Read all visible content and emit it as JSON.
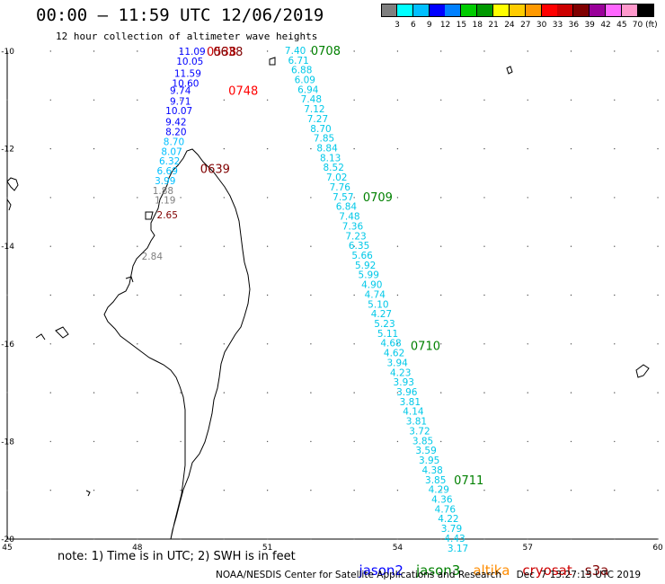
{
  "title": "00:00 – 11:59 UTC 12/06/2019",
  "subtitle": "12 hour collection of altimeter wave heights",
  "colorbar": {
    "colors": [
      "#7f7f7f",
      "#00ffff",
      "#00bfff",
      "#0000ff",
      "#0080ff",
      "#00cc00",
      "#009900",
      "#ffff00",
      "#ffcc00",
      "#ff9900",
      "#ff0000",
      "#cc0000",
      "#800000",
      "#990099",
      "#ff66ff",
      "#ff99cc",
      "#000000"
    ],
    "ticks": [
      "3",
      "6",
      "9",
      "12",
      "15",
      "18",
      "21",
      "24",
      "27",
      "30",
      "33",
      "36",
      "39",
      "42",
      "45",
      "70 (ft)"
    ]
  },
  "axes": {
    "lat_labels": [
      "-10",
      "-12",
      "-14",
      "-16",
      "-18",
      "-20"
    ],
    "lon_labels": [
      "45",
      "48",
      "51",
      "54",
      "57",
      "60"
    ]
  },
  "satellite_colors": {
    "jason2": "#0000ff",
    "jason3": "#008000",
    "altika": "#ff8c00",
    "cryosat": "#cc0000",
    "s3a": "#800000"
  },
  "track_east": {
    "time_labels": [
      {
        "text": "0708",
        "lat": -9.98,
        "lon": 52.0
      },
      {
        "text": "0709",
        "lat": -12.98,
        "lon": 53.2
      },
      {
        "text": "0710",
        "lat": -16.03,
        "lon": 54.3
      },
      {
        "text": "0711",
        "lat": -18.78,
        "lon": 55.3
      }
    ],
    "points": [
      {
        "v": "7.40",
        "lat": -9.98
      },
      {
        "v": "6.71",
        "lat": -10.18
      },
      {
        "v": "6.88",
        "lat": -10.38
      },
      {
        "v": "6.09",
        "lat": -10.58
      },
      {
        "v": "6.94",
        "lat": -10.78
      },
      {
        "v": "7.48",
        "lat": -10.98
      },
      {
        "v": "7.12",
        "lat": -11.18
      },
      {
        "v": "7.27",
        "lat": -11.38
      },
      {
        "v": "8.70",
        "lat": -11.58
      },
      {
        "v": "7.85",
        "lat": -11.78
      },
      {
        "v": "8.84",
        "lat": -11.98
      },
      {
        "v": "8.13",
        "lat": -12.18
      },
      {
        "v": "8.52",
        "lat": -12.38
      },
      {
        "v": "7.02",
        "lat": -12.58
      },
      {
        "v": "7.76",
        "lat": -12.78
      },
      {
        "v": "7.57",
        "lat": -12.98
      },
      {
        "v": "6.84",
        "lat": -13.18
      },
      {
        "v": "7.48",
        "lat": -13.38
      },
      {
        "v": "7.36",
        "lat": -13.58
      },
      {
        "v": "7.23",
        "lat": -13.78
      },
      {
        "v": "6.35",
        "lat": -13.98
      },
      {
        "v": "5.66",
        "lat": -14.18
      },
      {
        "v": "5.92",
        "lat": -14.38
      },
      {
        "v": "5.99",
        "lat": -14.58
      },
      {
        "v": "4.90",
        "lat": -14.78
      },
      {
        "v": "4.74",
        "lat": -14.98
      },
      {
        "v": "5.10",
        "lat": -15.18
      },
      {
        "v": "4.27",
        "lat": -15.38
      },
      {
        "v": "5.23",
        "lat": -15.58
      },
      {
        "v": "5.11",
        "lat": -15.78
      },
      {
        "v": "4.68",
        "lat": -15.98
      },
      {
        "v": "4.62",
        "lat": -16.18
      },
      {
        "v": "3.94",
        "lat": -16.38
      },
      {
        "v": "4.23",
        "lat": -16.58
      },
      {
        "v": "3.93",
        "lat": -16.78
      },
      {
        "v": "3.96",
        "lat": -16.98
      },
      {
        "v": "3.81",
        "lat": -17.18
      },
      {
        "v": "4.14",
        "lat": -17.38
      },
      {
        "v": "3.81",
        "lat": -17.58
      },
      {
        "v": "3.72",
        "lat": -17.78
      },
      {
        "v": "3.85",
        "lat": -17.98
      },
      {
        "v": "3.59",
        "lat": -18.18
      },
      {
        "v": "3.95",
        "lat": -18.38
      },
      {
        "v": "4.38",
        "lat": -18.58
      },
      {
        "v": "3.85",
        "lat": -18.78
      },
      {
        "v": "4.29",
        "lat": -18.98
      },
      {
        "v": "4.36",
        "lat": -19.18
      },
      {
        "v": "4.76",
        "lat": -19.38
      },
      {
        "v": "4.22",
        "lat": -19.58
      },
      {
        "v": "3.79",
        "lat": -19.78
      },
      {
        "v": "4.43",
        "lat": -19.98
      },
      {
        "v": "3.17",
        "lat": -20.18
      }
    ]
  },
  "track_west": {
    "time_labels": [
      {
        "text": "0538",
        "color": "#cc0000",
        "lat": -10.0,
        "lon": 49.6
      },
      {
        "text": "0638",
        "color": "#800000",
        "lat": -10.0,
        "lon": 49.75
      },
      {
        "text": "0748",
        "color": "#ff0000",
        "lat": -10.8,
        "lon": 50.1
      },
      {
        "text": "0639",
        "color": "#800000",
        "lat": -12.4,
        "lon": 49.45
      }
    ],
    "points": [
      {
        "v": "11.09",
        "color": "#0000ff",
        "lat": -10.0,
        "lon": 48.95
      },
      {
        "v": "10.05",
        "color": "#0000ff",
        "lat": -10.2,
        "lon": 48.9
      },
      {
        "v": "11.59",
        "color": "#0000ff",
        "lat": -10.45,
        "lon": 48.85
      },
      {
        "v": "10.60",
        "color": "#0000ff",
        "lat": -10.65,
        "lon": 48.8
      },
      {
        "v": "9.74",
        "color": "#0000ff",
        "lat": -10.8,
        "lon": 48.75
      },
      {
        "v": "9.71",
        "color": "#0000ff",
        "lat": -11.02,
        "lon": 48.75
      },
      {
        "v": "10.07",
        "color": "#0000ff",
        "lat": -11.22,
        "lon": 48.65
      },
      {
        "v": "9.42",
        "color": "#0000ff",
        "lat": -11.45,
        "lon": 48.65
      },
      {
        "v": "8.20",
        "color": "#0000ff",
        "lat": -11.65,
        "lon": 48.65
      },
      {
        "v": "8.70",
        "color": "#00bfff",
        "lat": -11.85,
        "lon": 48.6
      },
      {
        "v": "8.07",
        "color": "#00bfff",
        "lat": -12.05,
        "lon": 48.55
      },
      {
        "v": "6.32",
        "color": "#00bfff",
        "lat": -12.25,
        "lon": 48.5
      },
      {
        "v": "6.69",
        "color": "#00bfff",
        "lat": -12.45,
        "lon": 48.45
      },
      {
        "v": "3.99",
        "color": "#00bfff",
        "lat": -12.65,
        "lon": 48.4
      },
      {
        "v": "1.88",
        "color": "#7f7f7f",
        "lat": -12.85,
        "lon": 48.35
      },
      {
        "v": "1.19",
        "color": "#7f7f7f",
        "lat": -13.05,
        "lon": 48.4
      },
      {
        "v": "2.65",
        "color": "#800000",
        "lat": -13.35,
        "lon": 48.45
      },
      {
        "v": "2.84",
        "color": "#7f7f7f",
        "lat": -14.2,
        "lon": 48.1
      }
    ]
  },
  "note": "note: 1) Time is in UTC; 2) SWH is in feet",
  "legend": [
    "jason2",
    "jason3",
    "altika",
    "cryosat",
    "s3a"
  ],
  "credit": "NOAA/NESDIS Center for Satellite Applications and Research     Dec  7 13:27:15 UTC 2019"
}
